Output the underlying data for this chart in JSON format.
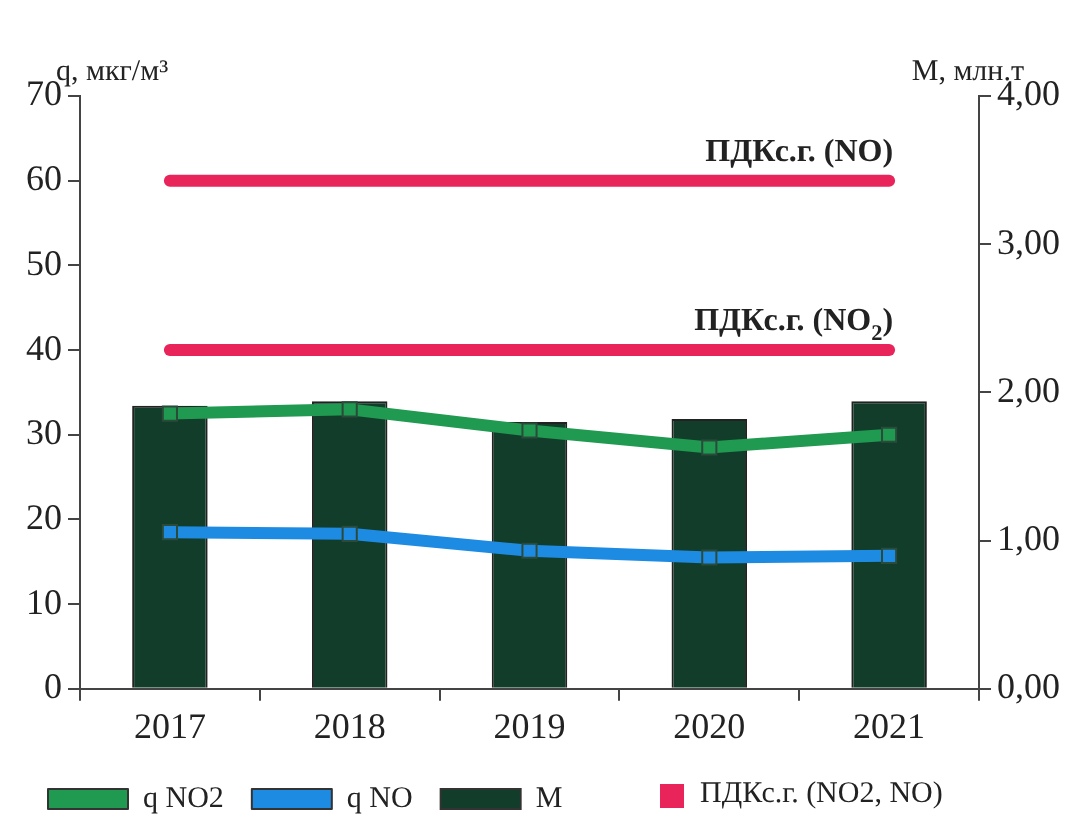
{
  "chart_data": {
    "type": "bar",
    "ylabel": "q, мкг/м³",
    "y2label": "М, млн.т",
    "categories": [
      "2017",
      "2018",
      "2019",
      "2020",
      "2021"
    ],
    "series": [
      {
        "name": "q NO2",
        "type": "line",
        "color": "#1f9a50",
        "values": [
          32.5,
          33,
          30.5,
          28.5,
          30
        ]
      },
      {
        "name": "q NO",
        "type": "line",
        "color": "#1e8be3",
        "values": [
          18.5,
          18.3,
          16.3,
          15.5,
          15.7
        ]
      },
      {
        "name": "М",
        "axis": "y2",
        "color": "#123d2b",
        "values": [
          1.91,
          1.94,
          1.8,
          1.82,
          1.94
        ]
      }
    ],
    "ylim": [
      0,
      70
    ],
    "yticks": [
      0,
      10,
      20,
      30,
      40,
      50,
      60,
      70
    ],
    "y2lim": [
      0,
      4
    ],
    "y2ticks": [
      {
        "value": 0,
        "label": "0,00"
      },
      {
        "value": 1,
        "label": "1,00"
      },
      {
        "value": 2,
        "label": "2,00"
      },
      {
        "value": 3,
        "label": "3,00"
      },
      {
        "value": 4,
        "label": "4,00"
      }
    ],
    "ref_lines": [
      {
        "axis": "y",
        "value": 60,
        "label": "ПДКс.г. (NO)",
        "color": "#e8245a"
      },
      {
        "axis": "y",
        "value": 40,
        "label": "ПДКс.г. (NO$_{2}$)",
        "color": "#e8245a"
      }
    ],
    "annotations": [
      "ПДКс.г. (NO2, NO)"
    ],
    "marker": "square",
    "grid": false,
    "legend": "bottom"
  }
}
